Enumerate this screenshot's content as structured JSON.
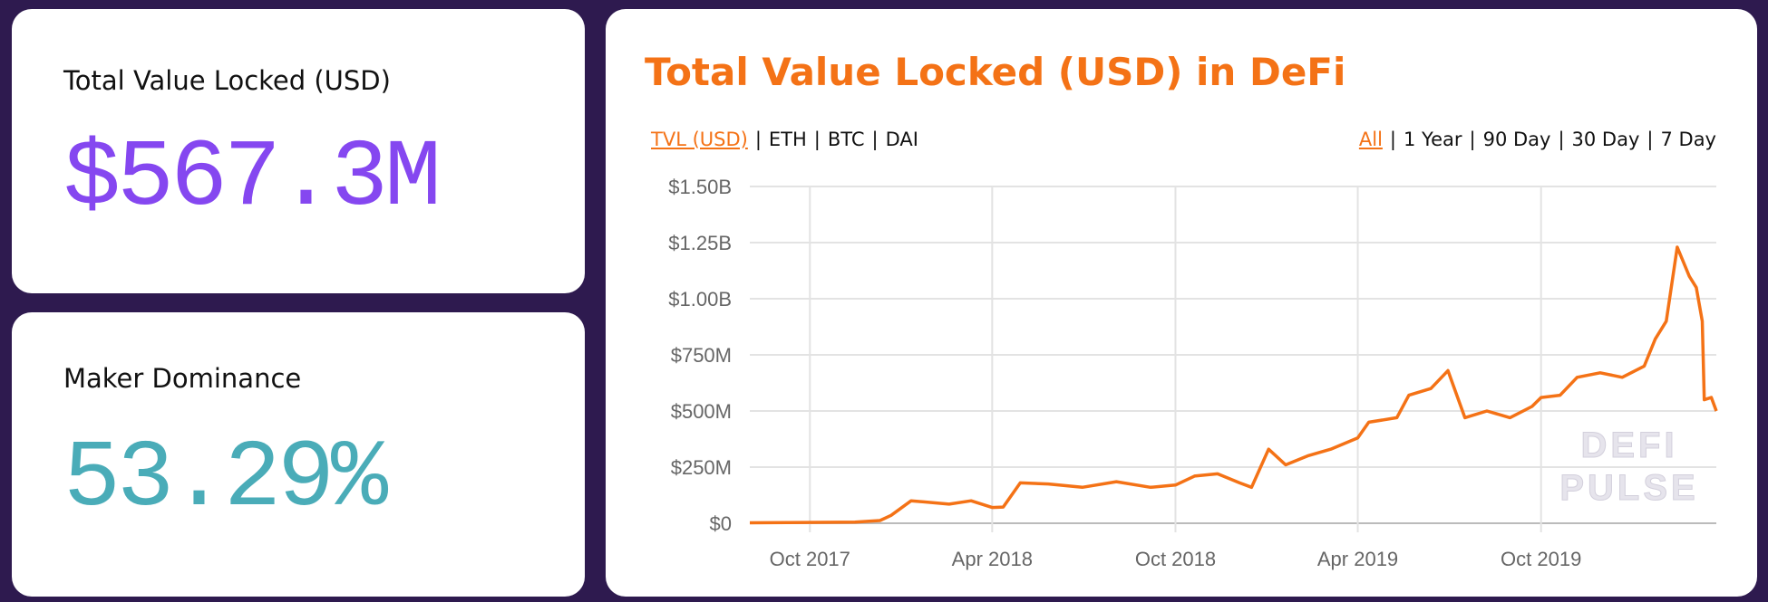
{
  "tvl_card": {
    "label": "Total Value Locked (USD)",
    "value": "$567.3M",
    "color": "#8547f0"
  },
  "dominance_card": {
    "label": "Maker Dominance",
    "value": "53.29%",
    "color": "#4aacb8"
  },
  "chart_panel": {
    "title": "Total Value Locked (USD) in DeFi",
    "currency_tabs": [
      {
        "label": "TVL (USD)",
        "active": true
      },
      {
        "label": "ETH",
        "active": false
      },
      {
        "label": "BTC",
        "active": false
      },
      {
        "label": "DAI",
        "active": false
      }
    ],
    "range_tabs": [
      {
        "label": "All",
        "active": true
      },
      {
        "label": "1 Year",
        "active": false
      },
      {
        "label": "90 Day",
        "active": false
      },
      {
        "label": "30 Day",
        "active": false
      },
      {
        "label": "7 Day",
        "active": false
      }
    ],
    "watermark": "DEFI PULSE",
    "accent": "#f47216"
  },
  "chart_data": {
    "type": "line",
    "title": "",
    "xlabel": "",
    "ylabel": "",
    "xlim": [
      "2017-08-02",
      "2020-03-24"
    ],
    "ylim": [
      0,
      1500000000
    ],
    "grid": true,
    "x_ticks": [
      {
        "date": "2017-10-01",
        "label": "Oct 2017"
      },
      {
        "date": "2018-04-01",
        "label": "Apr 2018"
      },
      {
        "date": "2018-10-01",
        "label": "Oct 2018"
      },
      {
        "date": "2019-04-01",
        "label": "Apr 2019"
      },
      {
        "date": "2019-10-01",
        "label": "Oct 2019"
      }
    ],
    "y_ticks": [
      {
        "value": 0,
        "label": "$0"
      },
      {
        "value": 250000000,
        "label": "$250M"
      },
      {
        "value": 500000000,
        "label": "$500M"
      },
      {
        "value": 750000000,
        "label": "$750M"
      },
      {
        "value": 1000000000,
        "label": "$1.00B"
      },
      {
        "value": 1250000000,
        "label": "$1.25B"
      },
      {
        "value": 1500000000,
        "label": "$1.50B"
      }
    ],
    "series": [
      {
        "color": "#f47216",
        "points": [
          [
            "2017-08-02",
            2000000
          ],
          [
            "2017-11-15",
            5000000
          ],
          [
            "2017-12-10",
            12000000
          ],
          [
            "2017-12-21",
            35000000
          ],
          [
            "2018-01-10",
            100000000
          ],
          [
            "2018-02-17",
            85000000
          ],
          [
            "2018-03-11",
            100000000
          ],
          [
            "2018-04-01",
            70000000
          ],
          [
            "2018-04-12",
            72000000
          ],
          [
            "2018-04-29",
            180000000
          ],
          [
            "2018-05-27",
            175000000
          ],
          [
            "2018-06-30",
            160000000
          ],
          [
            "2018-08-03",
            185000000
          ],
          [
            "2018-09-06",
            160000000
          ],
          [
            "2018-10-01",
            170000000
          ],
          [
            "2018-10-20",
            210000000
          ],
          [
            "2018-11-12",
            220000000
          ],
          [
            "2018-12-04",
            180000000
          ],
          [
            "2018-12-16",
            160000000
          ],
          [
            "2019-01-02",
            330000000
          ],
          [
            "2019-01-19",
            260000000
          ],
          [
            "2019-02-10",
            300000000
          ],
          [
            "2019-03-05",
            330000000
          ],
          [
            "2019-04-01",
            380000000
          ],
          [
            "2019-04-12",
            450000000
          ],
          [
            "2019-05-10",
            470000000
          ],
          [
            "2019-05-22",
            570000000
          ],
          [
            "2019-06-13",
            600000000
          ],
          [
            "2019-06-30",
            680000000
          ],
          [
            "2019-07-17",
            470000000
          ],
          [
            "2019-08-08",
            500000000
          ],
          [
            "2019-08-31",
            470000000
          ],
          [
            "2019-09-22",
            520000000
          ],
          [
            "2019-10-01",
            560000000
          ],
          [
            "2019-10-20",
            570000000
          ],
          [
            "2019-11-06",
            650000000
          ],
          [
            "2019-11-29",
            670000000
          ],
          [
            "2019-12-21",
            650000000
          ],
          [
            "2020-01-12",
            700000000
          ],
          [
            "2020-01-23",
            820000000
          ],
          [
            "2020-02-03",
            900000000
          ],
          [
            "2020-02-14",
            1230000000
          ],
          [
            "2020-02-26",
            1100000000
          ],
          [
            "2020-03-04",
            1050000000
          ],
          [
            "2020-03-10",
            900000000
          ],
          [
            "2020-03-12",
            550000000
          ],
          [
            "2020-03-19",
            560000000
          ],
          [
            "2020-03-24",
            500000000
          ]
        ]
      }
    ]
  }
}
